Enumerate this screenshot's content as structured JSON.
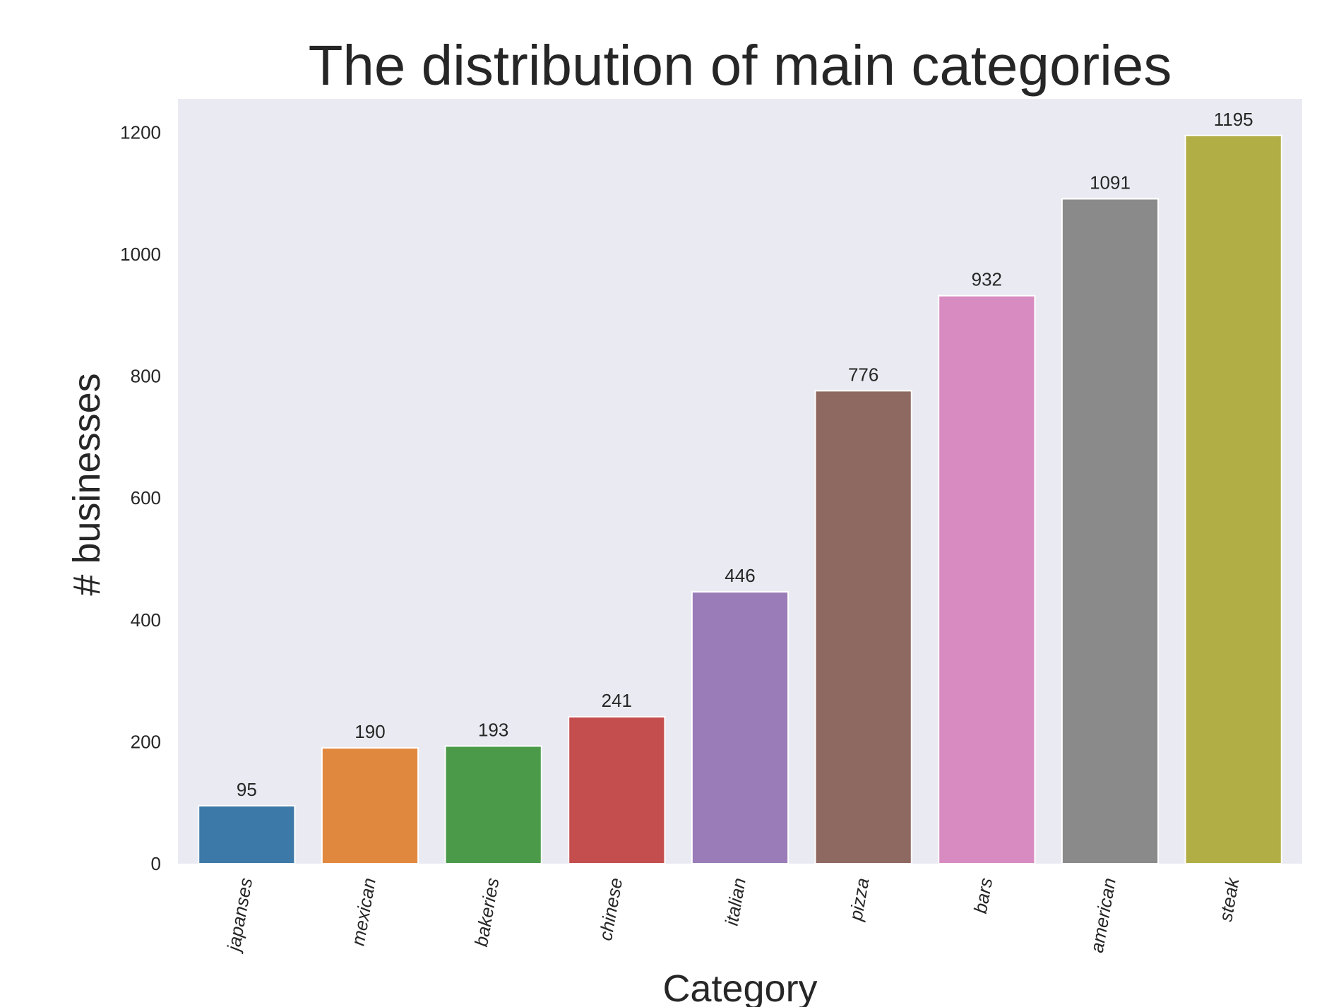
{
  "chart_data": {
    "type": "bar",
    "title": "The distribution of main categories",
    "xlabel": "Category",
    "ylabel": "# businesses",
    "categories": [
      "japanses",
      "mexican",
      "bakeries",
      "chinese",
      "italian",
      "pizza",
      "bars",
      "american",
      "steak"
    ],
    "values": [
      95,
      190,
      193,
      241,
      446,
      776,
      932,
      1091,
      1195
    ],
    "data_labels": [
      "95",
      "190",
      "193",
      "241",
      "446",
      "776",
      "932",
      "1091",
      "1195"
    ],
    "colors": [
      "#3d79a8",
      "#e1883f",
      "#4b9a4a",
      "#c44d4e",
      "#9a7cb8",
      "#8e6961",
      "#d88bc0",
      "#8a8a8a",
      "#b1ae45"
    ],
    "yticks": [
      0,
      200,
      400,
      600,
      800,
      1000,
      1200
    ],
    "ytick_labels": [
      "0",
      "200",
      "400",
      "600",
      "800",
      "1000",
      "1200"
    ],
    "ylim": [
      0,
      1255
    ],
    "grid": false,
    "background": "#eaeaf2",
    "category_label_rotation_deg": -80
  }
}
